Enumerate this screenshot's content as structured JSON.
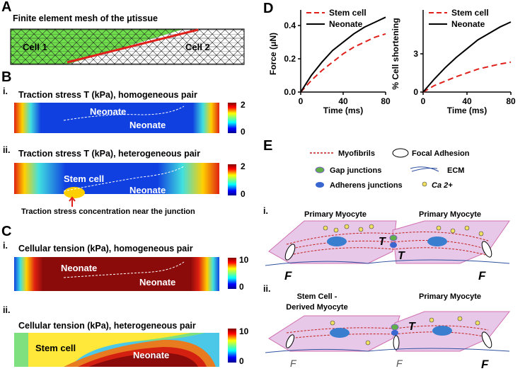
{
  "panels": {
    "a": {
      "letter": "A",
      "title": "Finite element mesh of the μtissue",
      "cell1": "Cell 1",
      "cell2": "Cell 2"
    },
    "b": {
      "letter": "B",
      "i": {
        "index": "i.",
        "title": "Traction stress T (kPa), homogeneous pair",
        "label1": "Neonate",
        "label2": "Neonate",
        "scale_max": 2,
        "scale_min": 0
      },
      "ii": {
        "index": "ii.",
        "title": "Traction stress T (kPa), heterogeneous pair",
        "label1": "Stem cell",
        "label2": "Neonate",
        "scale_max": 2,
        "scale_min": 0,
        "note": "Traction stress concentration near the junction"
      }
    },
    "c": {
      "letter": "C",
      "i": {
        "index": "i.",
        "title": "Cellular tension (kPa), homogeneous pair",
        "label1": "Neonate",
        "label2": "Neonate",
        "scale_max": 10,
        "scale_min": 0
      },
      "ii": {
        "index": "ii.",
        "title": "Cellular tension (kPa), heterogeneous pair",
        "label1": "Stem cell",
        "label2": "Neonate",
        "scale_max": 10,
        "scale_min": 0
      }
    },
    "d": {
      "letter": "D"
    },
    "e": {
      "letter": "E",
      "legend": {
        "myofibrils": "Myofibrils",
        "focal": "Focal Adhesion",
        "gap": "Gap junctions",
        "ecm": "ECM",
        "adherens": "Adherens junctions",
        "ca": "Ca 2+"
      },
      "i": {
        "index": "i.",
        "left": "Primary Myocyte",
        "right": "Primary Myocyte",
        "t": "T",
        "f": "F"
      },
      "ii": {
        "index": "ii.",
        "left1": "Stem Cell -",
        "left2": "Derived Myocyte",
        "right": "Primary Myocyte",
        "t": "T",
        "f": "F"
      }
    }
  },
  "chart_data": [
    {
      "type": "line",
      "ylabel": "Force (μN)",
      "xlabel": "Time (ms)",
      "x": [
        0,
        10,
        20,
        30,
        40,
        50,
        60,
        70,
        80
      ],
      "xlim": [
        0,
        80
      ],
      "xticks": [
        0,
        40,
        80
      ],
      "ylim": [
        0,
        0.46
      ],
      "yticks": [
        {
          "value": 0,
          "label": "0.0"
        },
        {
          "value": 0.2,
          "label": "0.2"
        },
        {
          "value": 0.4,
          "label": "0.4"
        }
      ],
      "legend": "upper left",
      "series": [
        {
          "name": "Stem cell",
          "color": "#e0201b",
          "linestyle": "dashed",
          "values": [
            0,
            0.07,
            0.13,
            0.18,
            0.23,
            0.27,
            0.3,
            0.33,
            0.35
          ]
        },
        {
          "name": "Neonate",
          "color": "#000000",
          "linestyle": "solid",
          "values": [
            0,
            0.1,
            0.18,
            0.25,
            0.3,
            0.35,
            0.39,
            0.42,
            0.45
          ]
        }
      ]
    },
    {
      "type": "line",
      "ylabel": "% Cell shortening",
      "xlabel": "Time (ms)",
      "x": [
        0,
        10,
        20,
        30,
        40,
        50,
        60,
        70,
        80
      ],
      "xlim": [
        0,
        80
      ],
      "xticks": [
        0,
        40,
        80
      ],
      "ylim": [
        0,
        6
      ],
      "yticks": [
        0,
        3
      ],
      "legend": "upper left",
      "series": [
        {
          "name": "Stem cell",
          "color": "#e0201b",
          "linestyle": "dashed",
          "values": [
            0,
            0.5,
            0.85,
            1.2,
            1.5,
            1.8,
            2.0,
            2.2,
            2.35
          ]
        },
        {
          "name": "Neonate",
          "color": "#000000",
          "linestyle": "solid",
          "values": [
            0,
            1.0,
            1.9,
            2.7,
            3.4,
            4.1,
            4.6,
            5.1,
            5.5
          ]
        }
      ]
    }
  ]
}
